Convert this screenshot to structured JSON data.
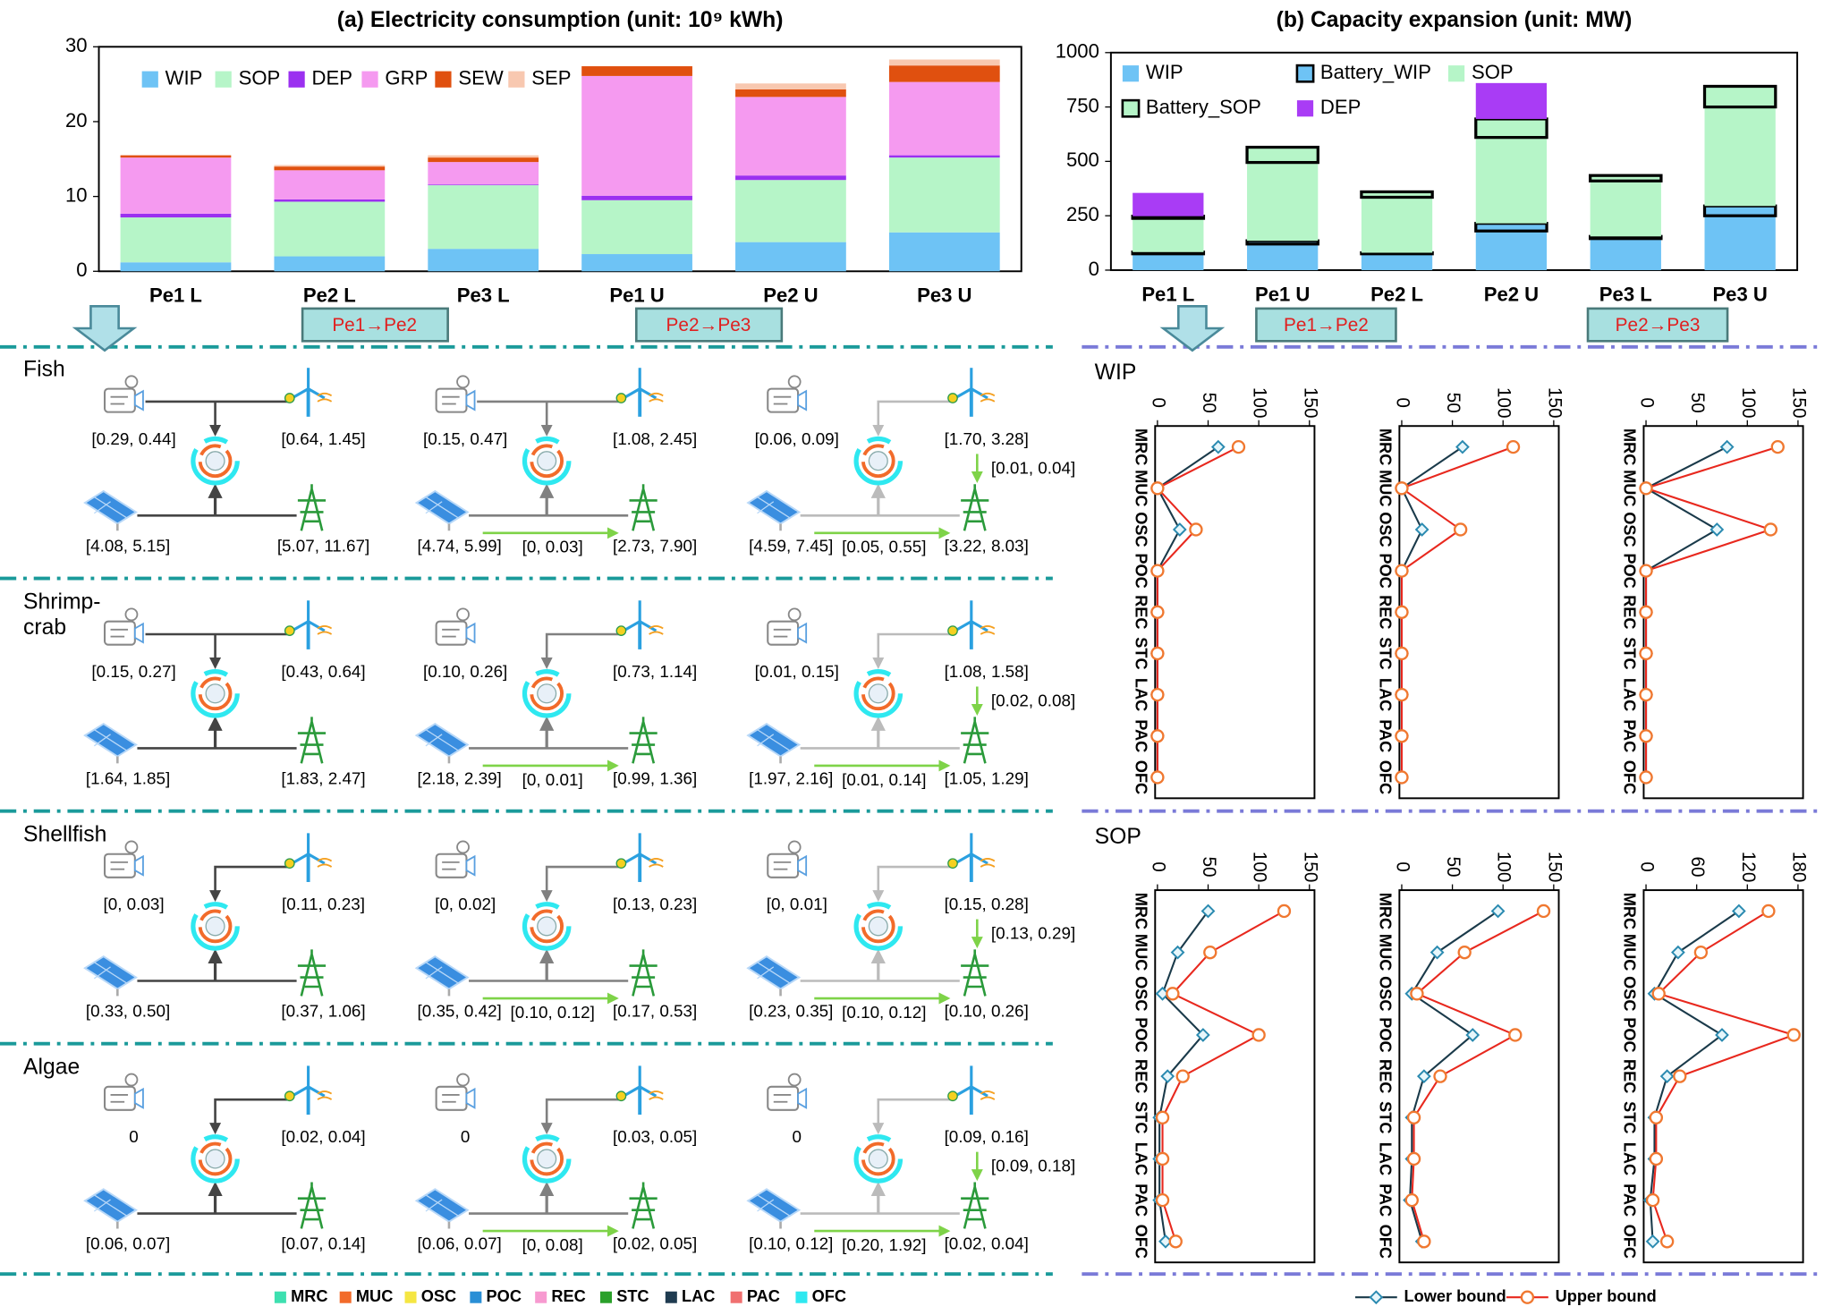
{
  "chart_data": [
    {
      "type": "stacked_bar",
      "title": "(a) Electricity consumption (unit: 10⁹ kWh)",
      "categories": [
        "Pe1 L",
        "Pe2 L",
        "Pe3 L",
        "Pe1 U",
        "Pe2 U",
        "Pe3 U"
      ],
      "ylim": [
        0,
        30
      ],
      "yticks": [
        0,
        10,
        20,
        30
      ],
      "series": [
        {
          "name": "WIP",
          "color": "#6ec3f5",
          "values": [
            1.2,
            2.0,
            3.0,
            2.3,
            3.9,
            5.2
          ]
        },
        {
          "name": "SOP",
          "color": "#b6f5c8",
          "values": [
            6.0,
            7.3,
            8.5,
            7.2,
            8.3,
            10.0
          ]
        },
        {
          "name": "DEP",
          "color": "#9b30f0",
          "values": [
            0.5,
            0.3,
            0.1,
            0.6,
            0.6,
            0.3
          ]
        },
        {
          "name": "GRP",
          "color": "#f59af0",
          "values": [
            7.5,
            3.9,
            3.0,
            16.0,
            10.5,
            9.8
          ]
        },
        {
          "name": "SEW",
          "color": "#e0500f",
          "values": [
            0.3,
            0.5,
            0.6,
            1.3,
            1.0,
            2.2
          ]
        },
        {
          "name": "SEP",
          "color": "#f8c8b0",
          "values": [
            0,
            0.2,
            0.3,
            0,
            0.8,
            0.8
          ]
        }
      ]
    },
    {
      "type": "stacked_bar",
      "title": "(b) Capacity expansion (unit: MW)",
      "categories": [
        "Pe1 L",
        "Pe1 U",
        "Pe2 L",
        "Pe2 U",
        "Pe3 L",
        "Pe3 U"
      ],
      "ylim": [
        0,
        1000
      ],
      "yticks": [
        0,
        250,
        500,
        750,
        1000
      ],
      "series": [
        {
          "name": "WIP",
          "color": "#6ec3f5",
          "values": [
            75,
            120,
            75,
            180,
            145,
            250
          ]
        },
        {
          "name": "Battery_WIP",
          "color": "#6ec3f5",
          "edgecolor": "#000000",
          "values": [
            8,
            15,
            5,
            35,
            10,
            45
          ]
        },
        {
          "name": "SOP",
          "color": "#b6f5c8",
          "values": [
            155,
            360,
            255,
            395,
            255,
            455
          ]
        },
        {
          "name": "Battery_SOP",
          "color": "#b6f5c8",
          "edgecolor": "#000000",
          "values": [
            10,
            70,
            25,
            85,
            25,
            95
          ]
        },
        {
          "name": "DEP",
          "color": "#a93cf5",
          "values": [
            107,
            0,
            0,
            165,
            0,
            0
          ]
        }
      ]
    },
    {
      "type": "line",
      "orientation": "vertical",
      "title": "WIP",
      "categories": [
        "MRC",
        "MUC",
        "OSC",
        "POC",
        "REC",
        "STC",
        "LAC",
        "PAC",
        "OFC"
      ],
      "xlim": [
        0,
        155
      ],
      "xticks": [
        0,
        50,
        100,
        150
      ],
      "series": [
        {
          "name": "Lower bound",
          "color": "#1a3a4a",
          "marker": "diamond",
          "marker_color": "#2a8ab0",
          "values": [
            60,
            0,
            22,
            0,
            0,
            0,
            0,
            0,
            0
          ]
        },
        {
          "name": "Upper bound",
          "color": "#e8281e",
          "marker": "circle",
          "marker_color": "#f07830",
          "values": [
            80,
            0,
            38,
            0,
            0,
            0,
            0,
            0,
            0
          ]
        }
      ]
    },
    {
      "type": "line",
      "orientation": "vertical",
      "categories": [
        "MRC",
        "MUC",
        "OSC",
        "POC",
        "REC",
        "STC",
        "LAC",
        "PAC",
        "OFC"
      ],
      "xlim": [
        0,
        155
      ],
      "xticks": [
        0,
        50,
        100,
        150
      ],
      "series": [
        {
          "name": "Lower bound",
          "color": "#1a3a4a",
          "marker": "diamond",
          "marker_color": "#2a8ab0",
          "values": [
            60,
            0,
            20,
            0,
            0,
            0,
            0,
            0,
            0
          ]
        },
        {
          "name": "Upper bound",
          "color": "#e8281e",
          "marker": "circle",
          "marker_color": "#f07830",
          "values": [
            110,
            0,
            58,
            0,
            0,
            0,
            0,
            0,
            0
          ]
        }
      ]
    },
    {
      "type": "line",
      "orientation": "vertical",
      "categories": [
        "MRC",
        "MUC",
        "OSC",
        "POC",
        "REC",
        "STC",
        "LAC",
        "PAC",
        "OFC"
      ],
      "xlim": [
        0,
        155
      ],
      "xticks": [
        0,
        50,
        100,
        150
      ],
      "series": [
        {
          "name": "Lower bound",
          "color": "#1a3a4a",
          "marker": "diamond",
          "marker_color": "#2a8ab0",
          "values": [
            80,
            0,
            70,
            0,
            0,
            0,
            0,
            0,
            0
          ]
        },
        {
          "name": "Upper bound",
          "color": "#e8281e",
          "marker": "circle",
          "marker_color": "#f07830",
          "values": [
            130,
            0,
            123,
            0,
            0,
            0,
            0,
            0,
            0
          ]
        }
      ]
    },
    {
      "type": "line",
      "orientation": "vertical",
      "title": "SOP",
      "categories": [
        "MRC",
        "MUC",
        "OSC",
        "POC",
        "REC",
        "STC",
        "LAC",
        "PAC",
        "OFC"
      ],
      "xlim": [
        0,
        155
      ],
      "xticks": [
        0,
        50,
        100,
        150
      ],
      "series": [
        {
          "name": "Lower bound",
          "color": "#1a3a4a",
          "marker": "diamond",
          "marker_color": "#2a8ab0",
          "values": [
            50,
            20,
            5,
            45,
            10,
            2,
            2,
            2,
            8
          ]
        },
        {
          "name": "Upper bound",
          "color": "#e8281e",
          "marker": "circle",
          "marker_color": "#f07830",
          "values": [
            125,
            52,
            15,
            100,
            25,
            5,
            5,
            5,
            18
          ]
        }
      ]
    },
    {
      "type": "line",
      "orientation": "vertical",
      "categories": [
        "MRC",
        "MUC",
        "OSC",
        "POC",
        "REC",
        "STC",
        "LAC",
        "PAC",
        "OFC"
      ],
      "xlim": [
        0,
        155
      ],
      "xticks": [
        0,
        50,
        100,
        150
      ],
      "series": [
        {
          "name": "Lower bound",
          "color": "#1a3a4a",
          "marker": "diamond",
          "marker_color": "#2a8ab0",
          "values": [
            95,
            35,
            10,
            70,
            22,
            10,
            10,
            8,
            20
          ]
        },
        {
          "name": "Upper bound",
          "color": "#e8281e",
          "marker": "circle",
          "marker_color": "#f07830",
          "values": [
            140,
            62,
            15,
            112,
            38,
            12,
            12,
            10,
            22
          ]
        }
      ]
    },
    {
      "type": "line",
      "orientation": "vertical",
      "categories": [
        "MRC",
        "MUC",
        "OSC",
        "POC",
        "REC",
        "STC",
        "LAC",
        "PAC",
        "OFC"
      ],
      "xlim": [
        0,
        186
      ],
      "xticks": [
        0,
        60,
        120,
        180
      ],
      "series": [
        {
          "name": "Lower bound",
          "color": "#1a3a4a",
          "marker": "diamond",
          "marker_color": "#2a8ab0",
          "values": [
            110,
            38,
            10,
            90,
            25,
            10,
            10,
            5,
            8
          ]
        },
        {
          "name": "Upper bound",
          "color": "#e8281e",
          "marker": "circle",
          "marker_color": "#f07830",
          "values": [
            145,
            65,
            15,
            175,
            40,
            12,
            12,
            8,
            25
          ]
        }
      ]
    }
  ],
  "transitions": [
    "Pe1→Pe2",
    "Pe2→Pe3"
  ],
  "diagram": {
    "rows": [
      {
        "name": "Fish",
        "columns": [
          {
            "diesel": "[0.29, 0.44]",
            "wind": "[0.64, 1.45]",
            "solar": "[4.08, 5.15]",
            "grid": "[5.07, 11.67]"
          },
          {
            "diesel": "[0.15, 0.47]",
            "wind": "[1.08, 2.45]",
            "solar": "[4.74, 5.99]",
            "solar_to_grid": "[0, 0.03]",
            "grid": "[2.73, 7.90]"
          },
          {
            "diesel": "[0.06, 0.09]",
            "wind": "[1.70, 3.28]",
            "wind_to_grid": "[0.01, 0.04]",
            "solar": "[4.59, 7.45]",
            "solar_to_grid": "[0.05, 0.55]",
            "grid": "[3.22, 8.03]"
          }
        ]
      },
      {
        "name": "Shrimp-crab",
        "columns": [
          {
            "diesel": "[0.15, 0.27]",
            "wind": "[0.43, 0.64]",
            "solar": "[1.64, 1.85]",
            "grid": "[1.83, 2.47]"
          },
          {
            "diesel": "[0.10, 0.26]",
            "wind": "[0.73, 1.14]",
            "solar": "[2.18, 2.39]",
            "solar_to_grid": "[0, 0.01]",
            "grid": "[0.99, 1.36]"
          },
          {
            "diesel": "[0.01, 0.15]",
            "wind": "[1.08, 1.58]",
            "wind_to_grid": "[0.02, 0.08]",
            "solar": "[1.97, 2.16]",
            "solar_to_grid": "[0.01, 0.14]",
            "grid": "[1.05, 1.29]"
          }
        ]
      },
      {
        "name": "Shellfish",
        "columns": [
          {
            "diesel": "[0, 0.03]",
            "wind": "[0.11, 0.23]",
            "solar": "[0.33, 0.50]",
            "grid": "[0.37, 1.06]"
          },
          {
            "diesel": "[0, 0.02]",
            "wind": "[0.13, 0.23]",
            "solar": "[0.35, 0.42]",
            "solar_to_grid": "[0.10, 0.12]",
            "grid": "[0.17, 0.53]"
          },
          {
            "diesel": "[0, 0.01]",
            "wind": "[0.15, 0.28]",
            "wind_to_grid": "[0.13, 0.29]",
            "solar": "[0.23, 0.35]",
            "solar_to_grid": "[0.10, 0.12]",
            "grid": "[0.10, 0.26]"
          }
        ]
      },
      {
        "name": "Algae",
        "columns": [
          {
            "diesel": "0",
            "wind": "[0.02, 0.04]",
            "solar": "[0.06, 0.07]",
            "grid": "[0.07, 0.14]"
          },
          {
            "diesel": "0",
            "wind": "[0.03, 0.05]",
            "solar": "[0.06, 0.07]",
            "solar_to_grid": "[0, 0.08]",
            "grid": "[0.02, 0.05]"
          },
          {
            "diesel": "0",
            "wind": "[0.09, 0.16]",
            "wind_to_grid": "[0.09, 0.18]",
            "solar": "[0.10, 0.12]",
            "solar_to_grid": "[0.20, 1.92]",
            "grid": "[0.02, 0.04]"
          }
        ]
      }
    ]
  },
  "ring_legend": [
    {
      "name": "MRC",
      "color": "#3de0b0"
    },
    {
      "name": "MUC",
      "color": "#f26b2a"
    },
    {
      "name": "OSC",
      "color": "#f5e642"
    },
    {
      "name": "POC",
      "color": "#2a8fd6"
    },
    {
      "name": "REC",
      "color": "#f79ad0"
    },
    {
      "name": "STC",
      "color": "#2aa02a"
    },
    {
      "name": "LAC",
      "color": "#1f3b50"
    },
    {
      "name": "PAC",
      "color": "#f07070"
    },
    {
      "name": "OFC",
      "color": "#2ee8f0"
    }
  ]
}
